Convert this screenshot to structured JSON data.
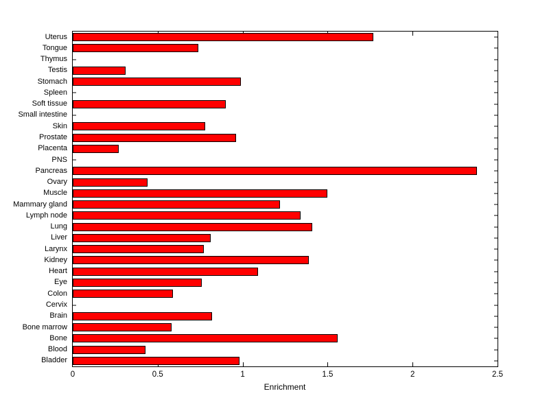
{
  "figure": {
    "background_color": "#ffffff",
    "plot_background_color": "#ffffff",
    "axis_color": "#000000"
  },
  "chart_data": {
    "type": "bar",
    "orientation": "horizontal",
    "title": "",
    "xlabel": "Enrichment",
    "ylabel": "",
    "xlim": [
      0,
      2.5
    ],
    "xticks": [
      0,
      0.5,
      1,
      1.5,
      2,
      2.5
    ],
    "xtick_labels": [
      "0",
      "0.5",
      "1",
      "1.5",
      "2",
      "2.5"
    ],
    "grid": false,
    "legend": "none",
    "bar_color": "#ff0000",
    "bar_edge_color": "#000000",
    "categories": [
      "Uterus",
      "Tongue",
      "Thymus",
      "Testis",
      "Stomach",
      "Spleen",
      "Soft tissue",
      "Small intestine",
      "Skin",
      "Prostate",
      "Placenta",
      "PNS",
      "Pancreas",
      "Ovary",
      "Muscle",
      "Mammary gland",
      "Lymph node",
      "Lung",
      "Liver",
      "Larynx",
      "Kidney",
      "Heart",
      "Eye",
      "Colon",
      "Cervix",
      "Brain",
      "Bone marrow",
      "Bone",
      "Blood",
      "Bladder"
    ],
    "values": [
      1.77,
      0.74,
      0,
      0.31,
      0.99,
      0,
      0.9,
      0,
      0.78,
      0.96,
      0.27,
      0,
      2.38,
      0.44,
      1.5,
      1.22,
      1.34,
      1.41,
      0.81,
      0.77,
      1.39,
      1.09,
      0.76,
      0.59,
      0,
      0.82,
      0.58,
      1.56,
      0.43,
      0.98
    ]
  }
}
